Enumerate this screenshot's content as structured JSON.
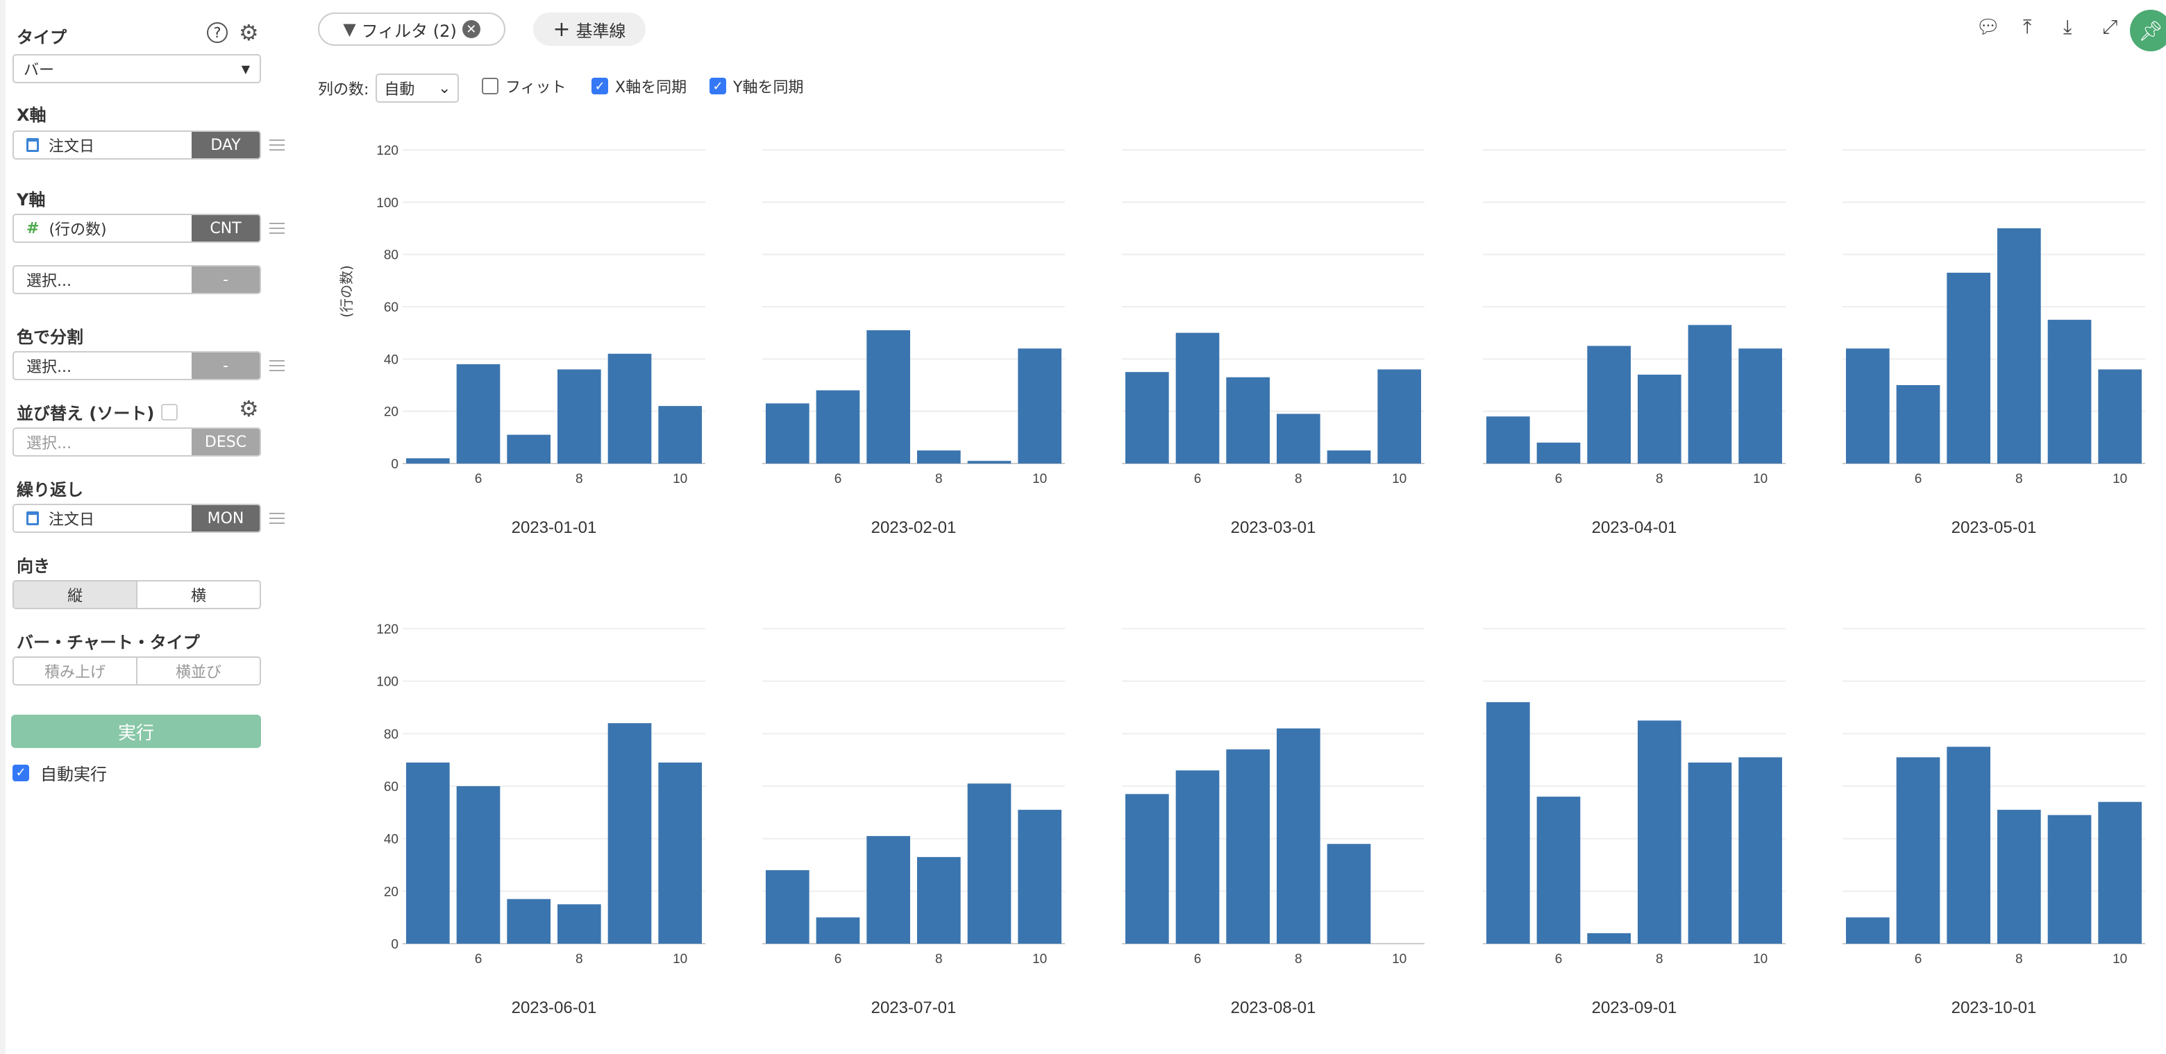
{
  "sidebar": {
    "type_label": "タイプ",
    "type_value": "バー",
    "x_axis_label": "X軸",
    "x_field": "注文日",
    "x_agg": "DAY",
    "y_axis_label": "Y軸",
    "y_field": "(行の数)",
    "y_agg": "CNT",
    "y2_placeholder": "選択...",
    "y2_agg": "-",
    "color_label": "色で分割",
    "color_placeholder": "選択...",
    "color_agg": "-",
    "sort_label": "並び替え (ソート)",
    "sort_placeholder": "選択...",
    "sort_order": "DESC",
    "repeat_label": "繰り返し",
    "repeat_field": "注文日",
    "repeat_agg": "MON",
    "orientation_label": "向き",
    "orientation_options": [
      "縦",
      "横"
    ],
    "bar_type_label": "バー・チャート・タイプ",
    "bar_type_options": [
      "積み上げ",
      "横並び"
    ],
    "run_label": "実行",
    "auto_run_label": "自動実行",
    "auto_run": true
  },
  "toolbar": {
    "filter_label": "フィルタ (2)",
    "reference_label": "基準線",
    "columns_label": "列の数:",
    "columns_value": "自動",
    "fit_label": "フィット",
    "fit": false,
    "sync_x_label": "X軸を同期",
    "sync_x": true,
    "sync_y_label": "Y軸を同期",
    "sync_y": true,
    "icons": [
      "comment-icon",
      "upload-icon",
      "download-icon",
      "expand-icon",
      "pin-icon"
    ],
    "accent": "#4caa73"
  },
  "chart_data": {
    "type": "bar",
    "ylabel": "(行の数)",
    "ylim": [
      0,
      120
    ],
    "yticks": [
      0,
      20,
      40,
      60,
      80,
      100,
      120
    ],
    "x": [
      5,
      6,
      7,
      8,
      9,
      10
    ],
    "xticks": [
      6,
      8,
      10
    ],
    "grid": true,
    "color": "#3b75af",
    "panels": [
      {
        "title": "2023-01-01",
        "values": [
          2,
          38,
          11,
          36,
          42,
          22
        ]
      },
      {
        "title": "2023-02-01",
        "values": [
          23,
          28,
          51,
          5,
          1,
          44
        ]
      },
      {
        "title": "2023-03-01",
        "values": [
          35,
          50,
          33,
          19,
          5,
          36
        ]
      },
      {
        "title": "2023-04-01",
        "values": [
          18,
          8,
          45,
          34,
          53,
          44
        ]
      },
      {
        "title": "2023-05-01",
        "values": [
          44,
          30,
          73,
          90,
          55,
          36
        ]
      },
      {
        "title": "2023-06-01",
        "values": [
          69,
          60,
          17,
          15,
          84,
          69
        ]
      },
      {
        "title": "2023-07-01",
        "values": [
          28,
          10,
          41,
          33,
          61,
          51
        ]
      },
      {
        "title": "2023-08-01",
        "values": [
          57,
          66,
          74,
          82,
          38,
          0
        ]
      },
      {
        "title": "2023-09-01",
        "values": [
          92,
          56,
          4,
          85,
          69,
          71
        ]
      },
      {
        "title": "2023-10-01",
        "values": [
          10,
          71,
          75,
          51,
          49,
          54
        ]
      }
    ]
  }
}
